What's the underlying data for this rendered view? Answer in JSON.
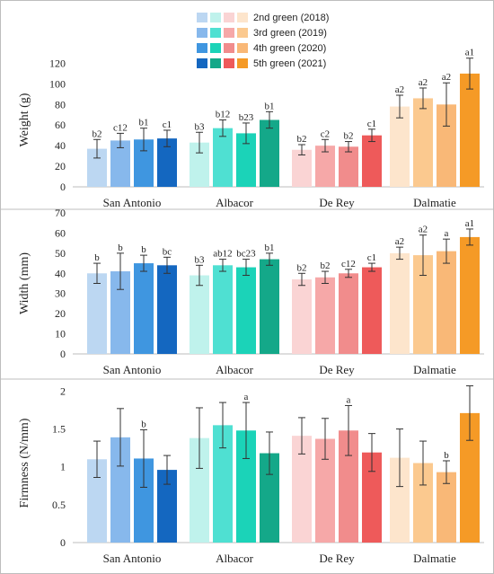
{
  "legend": {
    "entries": [
      {
        "label": "2nd green (2018)",
        "colors": [
          "#bcd7f2",
          "#bff2ec",
          "#fad4d4",
          "#fde5cc"
        ]
      },
      {
        "label": "3rd green (2019)",
        "colors": [
          "#87b8ec",
          "#4fe0d2",
          "#f6a8a8",
          "#fbc98f"
        ]
      },
      {
        "label": "4th green (2020)",
        "colors": [
          "#3f96e0",
          "#1bd3b8",
          "#f18c8c",
          "#f9b877"
        ]
      },
      {
        "label": "5th green (2021)",
        "colors": [
          "#1467c0",
          "#14a889",
          "#ee5a5a",
          "#f59a26"
        ]
      }
    ]
  },
  "chart_data": [
    {
      "type": "bar",
      "ylabel": "Weight (g)",
      "ylim": [
        0,
        130
      ],
      "yticks": [
        "0",
        "20",
        "40",
        "60",
        "80",
        "100",
        "120"
      ],
      "categories": [
        "San Antonio",
        "Albacor",
        "De Rey",
        "Dalmatie"
      ],
      "series": [
        {
          "values": [
            37,
            43,
            36,
            78
          ],
          "errors": [
            9,
            10,
            5,
            11
          ],
          "labels": [
            "b2",
            "b3",
            "b2",
            "a2"
          ]
        },
        {
          "values": [
            45,
            57,
            40,
            86
          ],
          "errors": [
            7,
            8,
            6,
            10
          ],
          "labels": [
            "c12",
            "b12",
            "c2",
            "a2"
          ]
        },
        {
          "values": [
            46,
            52,
            39,
            80
          ],
          "errors": [
            11,
            10,
            5,
            21
          ],
          "labels": [
            "b1",
            "b23",
            "b2",
            "a2"
          ]
        },
        {
          "values": [
            47,
            65,
            50,
            110
          ],
          "errors": [
            8,
            8,
            6,
            15
          ],
          "labels": [
            "c1",
            "b1",
            "c1",
            "a1"
          ]
        }
      ]
    },
    {
      "type": "bar",
      "ylabel": "Width (mm)",
      "ylim": [
        0,
        70
      ],
      "yticks": [
        "0",
        "10",
        "20",
        "30",
        "40",
        "50",
        "60",
        "70"
      ],
      "categories": [
        "San Antonio",
        "Albacor",
        "De Rey",
        "Dalmatie"
      ],
      "series": [
        {
          "values": [
            40,
            39,
            37,
            50
          ],
          "errors": [
            5,
            5,
            3,
            3
          ],
          "labels": [
            "b",
            "b3",
            "b2",
            "a2"
          ]
        },
        {
          "values": [
            41,
            44,
            38,
            49
          ],
          "errors": [
            9,
            3,
            3,
            10
          ],
          "labels": [
            "b",
            "ab12",
            "b2",
            "a2"
          ]
        },
        {
          "values": [
            45,
            43,
            40,
            51
          ],
          "errors": [
            4,
            4,
            2,
            6
          ],
          "labels": [
            "b",
            "bc23",
            "c12",
            "a"
          ]
        },
        {
          "values": [
            44,
            47,
            43,
            58
          ],
          "errors": [
            4,
            3,
            2,
            4
          ],
          "labels": [
            "bc",
            "b1",
            "c1",
            "a1"
          ]
        }
      ]
    },
    {
      "type": "bar",
      "ylabel": "Firmness (N/mm)",
      "ylim": [
        0,
        2.1
      ],
      "yticks": [
        "0",
        "0.5",
        "1",
        "1.5",
        "2"
      ],
      "categories": [
        "San Antonio",
        "Albacor",
        "De Rey",
        "Dalmatie"
      ],
      "series": [
        {
          "values": [
            1.1,
            1.38,
            1.41,
            1.12
          ],
          "errors": [
            0.24,
            0.4,
            0.24,
            0.38
          ],
          "labels": [
            "",
            "",
            "",
            ""
          ]
        },
        {
          "values": [
            1.39,
            1.55,
            1.37,
            1.05
          ],
          "errors": [
            0.38,
            0.3,
            0.27,
            0.29
          ],
          "labels": [
            "",
            "",
            "",
            ""
          ]
        },
        {
          "values": [
            1.11,
            1.48,
            1.48,
            0.93
          ],
          "errors": [
            0.38,
            0.37,
            0.33,
            0.15
          ],
          "labels": [
            "b",
            "a",
            "a",
            "b"
          ]
        },
        {
          "values": [
            0.96,
            1.18,
            1.19,
            1.71
          ],
          "errors": [
            0.19,
            0.28,
            0.25,
            0.36
          ],
          "labels": [
            "",
            "",
            "",
            ""
          ]
        }
      ]
    }
  ]
}
